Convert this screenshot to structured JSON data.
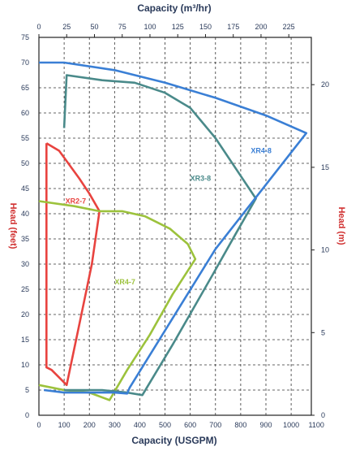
{
  "chart_data": {
    "type": "line",
    "title_top": "Capacity (m³/hr)",
    "xlabel": "Capacity (USGPM)",
    "ylabel_left": "Head (feet)",
    "ylabel_right": "Head (m)",
    "xlim": [
      0,
      1080
    ],
    "ylim": [
      0,
      75
    ],
    "grid": true,
    "x_ticks": [
      "0",
      "100",
      "200",
      "300",
      "400",
      "500",
      "600",
      "700",
      "800",
      "900",
      "1000",
      "1100"
    ],
    "y_ticks_left": [
      "0",
      "5",
      "10",
      "15",
      "20",
      "25",
      "30",
      "35",
      "40",
      "45",
      "50",
      "55",
      "60",
      "65",
      "70",
      "75"
    ],
    "top_ticks": [
      "0",
      "25",
      "50",
      "75",
      "100",
      "125",
      "150",
      "175",
      "200",
      "225"
    ],
    "right_ticks": [
      "0",
      "5",
      "10",
      "15",
      "20"
    ],
    "series": [
      {
        "name": "XR2-7",
        "color": "#e8433f",
        "label_at": [
          105,
          42
        ],
        "points": [
          [
            30,
            54
          ],
          [
            80,
            52.5
          ],
          [
            160,
            47
          ],
          [
            200,
            44
          ],
          [
            240,
            40.5
          ],
          [
            210,
            30
          ],
          [
            160,
            18
          ],
          [
            110,
            6
          ],
          [
            90,
            7
          ],
          [
            50,
            9
          ],
          [
            30,
            9.5
          ],
          [
            30,
            54
          ]
        ]
      },
      {
        "name": "XR4-7",
        "color": "#9cc23c",
        "label_at": [
          300,
          26
        ],
        "points": [
          [
            0,
            6
          ],
          [
            100,
            5
          ],
          [
            200,
            4.5
          ],
          [
            280,
            3
          ],
          [
            350,
            9
          ],
          [
            440,
            16
          ],
          [
            530,
            24
          ],
          [
            620,
            31
          ],
          [
            590,
            34
          ],
          [
            520,
            37
          ],
          [
            420,
            39.5
          ],
          [
            330,
            40.5
          ],
          [
            240,
            40.5
          ],
          [
            140,
            41.5
          ],
          [
            0,
            42.5
          ]
        ]
      },
      {
        "name": "XR3-8",
        "color": "#4a8a8a",
        "label_at": [
          600,
          46.5
        ],
        "points": [
          [
            100,
            5
          ],
          [
            250,
            5
          ],
          [
            350,
            4.5
          ],
          [
            410,
            4
          ],
          [
            530,
            14
          ],
          [
            690,
            28
          ],
          [
            780,
            36
          ],
          [
            860,
            43
          ],
          [
            780,
            49
          ],
          [
            700,
            55
          ],
          [
            600,
            61
          ],
          [
            500,
            64
          ],
          [
            380,
            66
          ],
          [
            250,
            66.5
          ],
          [
            110,
            67.5
          ],
          [
            100,
            57
          ]
        ]
      },
      {
        "name": "XR4-8",
        "color": "#3a7fd5",
        "label_at": [
          840,
          52
        ],
        "points": [
          [
            20,
            5
          ],
          [
            100,
            4.5
          ],
          [
            200,
            4.5
          ],
          [
            300,
            4.5
          ],
          [
            350,
            4.3
          ],
          [
            360,
            5.5
          ],
          [
            700,
            33
          ],
          [
            1060,
            56
          ],
          [
            900,
            59.5
          ],
          [
            700,
            63
          ],
          [
            500,
            66
          ],
          [
            300,
            68.5
          ],
          [
            100,
            70
          ],
          [
            0,
            70
          ]
        ]
      }
    ]
  }
}
